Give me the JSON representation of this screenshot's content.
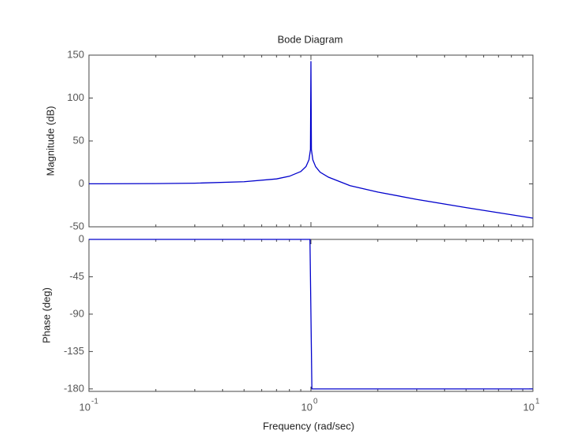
{
  "chart_data": [
    {
      "type": "line",
      "title": "Bode Diagram",
      "ylabel": "Magnitude (dB)",
      "xscale": "log",
      "xlim": [
        0.1,
        10
      ],
      "xticks": [
        0.1,
        1,
        10
      ],
      "xminorticks": [
        0.2,
        0.3,
        0.4,
        0.5,
        0.6,
        0.7,
        0.8,
        0.9,
        2,
        3,
        4,
        5,
        6,
        7,
        8,
        9
      ],
      "ylim": [
        -50,
        150
      ],
      "yticks": [
        -50,
        0,
        50,
        100,
        150
      ],
      "x": [
        0.1,
        0.2,
        0.3,
        0.5,
        0.7,
        0.8,
        0.9,
        0.95,
        0.98,
        0.995,
        1,
        1.005,
        1.02,
        1.05,
        1.1,
        1.2,
        1.5,
        2,
        3,
        5,
        7,
        10
      ],
      "series": [
        {
          "color": "#0000cc",
          "values": [
            0.09,
            0.35,
            0.83,
            2.5,
            5.8,
            8.9,
            14.4,
            20.2,
            28.1,
            40,
            143,
            40,
            28,
            20,
            13.6,
            7.8,
            -2.1,
            -9.5,
            -18.1,
            -27.6,
            -33.6,
            -39.9
          ]
        }
      ]
    },
    {
      "type": "line",
      "ylabel": "Phase (deg)",
      "xlabel": "Frequency  (rad/sec)",
      "xscale": "log",
      "xlim": [
        0.1,
        10
      ],
      "xticks": [
        {
          "value": 0.1,
          "label": "10",
          "exponent": "-1"
        },
        {
          "value": 1,
          "label": "10",
          "exponent": "0"
        },
        {
          "value": 10,
          "label": "10",
          "exponent": "1"
        }
      ],
      "xminorticks": [
        0.2,
        0.3,
        0.4,
        0.5,
        0.6,
        0.7,
        0.8,
        0.9,
        2,
        3,
        4,
        5,
        6,
        7,
        8,
        9
      ],
      "ylim": [
        -183,
        0
      ],
      "yticks": [
        -180,
        -135,
        -90,
        -45,
        0
      ],
      "x": [
        0.1,
        0.5,
        0.99,
        1.01,
        2,
        10
      ],
      "series": [
        {
          "color": "#0000cc",
          "values": [
            0,
            0,
            0,
            -180,
            -180,
            -180
          ]
        }
      ]
    }
  ]
}
